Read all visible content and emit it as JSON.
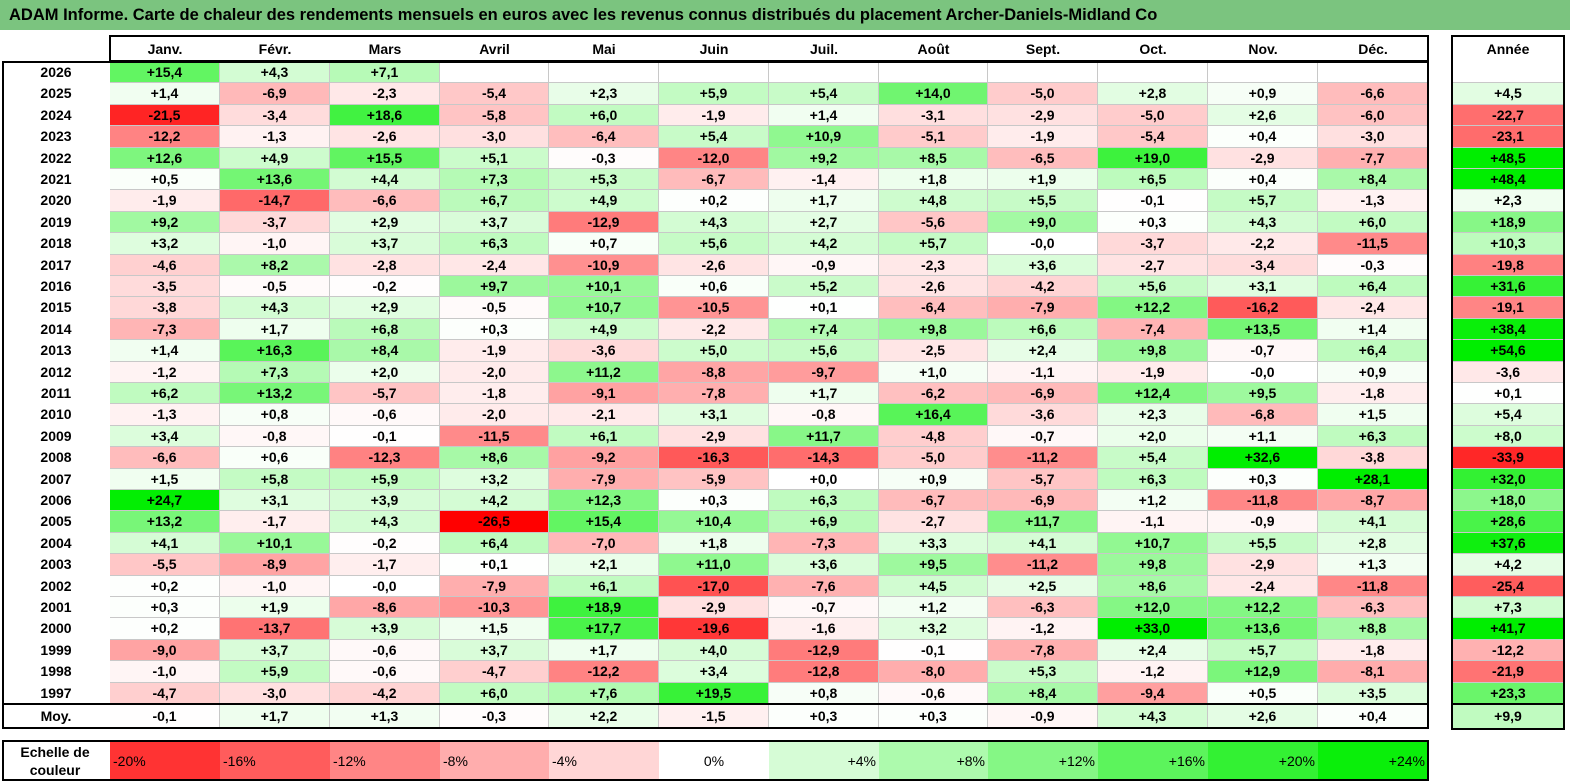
{
  "title": "ADAM Informe. Carte de chaleur des rendements mensuels en euros avec les revenus connus distribués du placement Archer-Daniels-Midland Co",
  "chart_data": {
    "type": "heatmap",
    "title": "ADAM Informe. Carte de chaleur des rendements mensuels en euros avec les revenus connus distribués du placement Archer-Daniels-Midland Co",
    "months": [
      "Janv.",
      "Févr.",
      "Mars",
      "Avril",
      "Mai",
      "Juin",
      "Juil.",
      "Août",
      "Sept.",
      "Oct.",
      "Nov.",
      "Déc."
    ],
    "year_header": "Année",
    "rows": [
      {
        "label": "2026",
        "values": [
          "+15,4",
          "+4,3",
          "+7,1",
          "",
          "",
          "",
          "",
          "",
          "",
          "",
          "",
          ""
        ],
        "year": ""
      },
      {
        "label": "2025",
        "values": [
          "+1,4",
          "-6,9",
          "-2,3",
          "-5,4",
          "+2,3",
          "+5,9",
          "+5,4",
          "+14,0",
          "-5,0",
          "+2,8",
          "+0,9",
          "-6,6"
        ],
        "year": "+4,5"
      },
      {
        "label": "2024",
        "values": [
          "-21,5",
          "-3,4",
          "+18,6",
          "-5,8",
          "+6,0",
          "-1,9",
          "+1,4",
          "-3,1",
          "-2,9",
          "-5,0",
          "+2,6",
          "-6,0"
        ],
        "year": "-22,7"
      },
      {
        "label": "2023",
        "values": [
          "-12,2",
          "-1,3",
          "-2,6",
          "-3,0",
          "-6,4",
          "+5,4",
          "+10,9",
          "-5,1",
          "-1,9",
          "-5,4",
          "+0,4",
          "-3,0"
        ],
        "year": "-23,1"
      },
      {
        "label": "2022",
        "values": [
          "+12,6",
          "+4,9",
          "+15,5",
          "+5,1",
          "-0,3",
          "-12,0",
          "+9,2",
          "+8,5",
          "-6,5",
          "+19,0",
          "-2,9",
          "-7,7"
        ],
        "year": "+48,5"
      },
      {
        "label": "2021",
        "values": [
          "+0,5",
          "+13,6",
          "+4,4",
          "+7,3",
          "+5,3",
          "-6,7",
          "-1,4",
          "+1,8",
          "+1,9",
          "+6,5",
          "+0,4",
          "+8,4"
        ],
        "year": "+48,4"
      },
      {
        "label": "2020",
        "values": [
          "-1,9",
          "-14,7",
          "-6,6",
          "+6,7",
          "+4,9",
          "+0,2",
          "+1,7",
          "+4,8",
          "+5,5",
          "-0,1",
          "+5,7",
          "-1,3"
        ],
        "year": "+2,3"
      },
      {
        "label": "2019",
        "values": [
          "+9,2",
          "-3,7",
          "+2,9",
          "+3,7",
          "-12,9",
          "+4,3",
          "+2,7",
          "-5,6",
          "+9,0",
          "+0,3",
          "+4,3",
          "+6,0"
        ],
        "year": "+18,9"
      },
      {
        "label": "2018",
        "values": [
          "+3,2",
          "-1,0",
          "+3,7",
          "+6,3",
          "+0,7",
          "+5,6",
          "+4,2",
          "+5,7",
          "-0,0",
          "-3,7",
          "-2,2",
          "-11,5"
        ],
        "year": "+10,3"
      },
      {
        "label": "2017",
        "values": [
          "-4,6",
          "+8,2",
          "-2,8",
          "-2,4",
          "-10,9",
          "-2,6",
          "-0,9",
          "-2,3",
          "+3,6",
          "-2,7",
          "-3,4",
          "-0,3"
        ],
        "year": "-19,8"
      },
      {
        "label": "2016",
        "values": [
          "-3,5",
          "-0,5",
          "-0,2",
          "+9,7",
          "+10,1",
          "+0,6",
          "+5,2",
          "-2,6",
          "-4,2",
          "+5,6",
          "+3,1",
          "+6,4"
        ],
        "year": "+31,6"
      },
      {
        "label": "2015",
        "values": [
          "-3,8",
          "+4,3",
          "+2,9",
          "-0,5",
          "+10,7",
          "-10,5",
          "+0,1",
          "-6,4",
          "-7,9",
          "+12,2",
          "-16,2",
          "-2,4"
        ],
        "year": "-19,1"
      },
      {
        "label": "2014",
        "values": [
          "-7,3",
          "+1,7",
          "+6,8",
          "+0,3",
          "+4,9",
          "-2,2",
          "+7,4",
          "+9,8",
          "+6,6",
          "-7,4",
          "+13,5",
          "+1,4"
        ],
        "year": "+38,4"
      },
      {
        "label": "2013",
        "values": [
          "+1,4",
          "+16,3",
          "+8,4",
          "-1,9",
          "-3,6",
          "+5,0",
          "+5,6",
          "-2,5",
          "+2,4",
          "+9,8",
          "-0,7",
          "+6,4"
        ],
        "year": "+54,6"
      },
      {
        "label": "2012",
        "values": [
          "-1,2",
          "+7,3",
          "+2,0",
          "-2,0",
          "+11,2",
          "-8,8",
          "-9,7",
          "+1,0",
          "-1,1",
          "-1,9",
          "-0,0",
          "+0,9"
        ],
        "year": "-3,6"
      },
      {
        "label": "2011",
        "values": [
          "+6,2",
          "+13,2",
          "-5,7",
          "-1,8",
          "-9,1",
          "-7,8",
          "+1,7",
          "-6,2",
          "-6,9",
          "+12,4",
          "+9,5",
          "-1,8"
        ],
        "year": "+0,1"
      },
      {
        "label": "2010",
        "values": [
          "-1,3",
          "+0,8",
          "-0,6",
          "-2,0",
          "-2,1",
          "+3,1",
          "-0,8",
          "+16,4",
          "-3,6",
          "+2,3",
          "-6,8",
          "+1,5"
        ],
        "year": "+5,4"
      },
      {
        "label": "2009",
        "values": [
          "+3,4",
          "-0,8",
          "-0,1",
          "-11,5",
          "+6,1",
          "-2,9",
          "+11,7",
          "-4,8",
          "-0,7",
          "+2,0",
          "+1,1",
          "+6,3"
        ],
        "year": "+8,0"
      },
      {
        "label": "2008",
        "values": [
          "-6,6",
          "+0,6",
          "-12,3",
          "+8,6",
          "-9,2",
          "-16,3",
          "-14,3",
          "-5,0",
          "-11,2",
          "+5,4",
          "+32,6",
          "-3,8"
        ],
        "year": "-33,9"
      },
      {
        "label": "2007",
        "values": [
          "+1,5",
          "+5,8",
          "+5,9",
          "+3,2",
          "-7,9",
          "-5,9",
          "+0,0",
          "+0,9",
          "-5,7",
          "+6,3",
          "+0,3",
          "+28,1"
        ],
        "year": "+32,0"
      },
      {
        "label": "2006",
        "values": [
          "+24,7",
          "+3,1",
          "+3,9",
          "+4,2",
          "+12,3",
          "+0,3",
          "+6,3",
          "-6,7",
          "-6,9",
          "+1,2",
          "-11,8",
          "-8,7"
        ],
        "year": "+18,0"
      },
      {
        "label": "2005",
        "values": [
          "+13,2",
          "-1,7",
          "+4,3",
          "-26,5",
          "+15,4",
          "+10,4",
          "+6,9",
          "-2,7",
          "+11,7",
          "-1,1",
          "-0,9",
          "+4,1"
        ],
        "year": "+28,6"
      },
      {
        "label": "2004",
        "values": [
          "+4,1",
          "+10,1",
          "-0,2",
          "+6,4",
          "-7,0",
          "+1,8",
          "-7,3",
          "+3,3",
          "+4,1",
          "+10,7",
          "+5,5",
          "+2,8"
        ],
        "year": "+37,6"
      },
      {
        "label": "2003",
        "values": [
          "-5,5",
          "-8,9",
          "-1,7",
          "+0,1",
          "+2,1",
          "+11,0",
          "+3,6",
          "+9,5",
          "-11,2",
          "+9,8",
          "-2,9",
          "+1,3"
        ],
        "year": "+4,2"
      },
      {
        "label": "2002",
        "values": [
          "+0,2",
          "-1,0",
          "-0,0",
          "-7,9",
          "+6,1",
          "-17,0",
          "-7,6",
          "+4,5",
          "+2,5",
          "+8,6",
          "-2,4",
          "-11,8"
        ],
        "year": "-25,4"
      },
      {
        "label": "2001",
        "values": [
          "+0,3",
          "+1,9",
          "-8,6",
          "-10,3",
          "+18,9",
          "-2,9",
          "-0,7",
          "+1,2",
          "-6,3",
          "+12,0",
          "+12,2",
          "-6,3"
        ],
        "year": "+7,3"
      },
      {
        "label": "2000",
        "values": [
          "+0,2",
          "-13,7",
          "+3,9",
          "+1,5",
          "+17,7",
          "-19,6",
          "-1,6",
          "+3,2",
          "-1,2",
          "+33,0",
          "+13,6",
          "+8,8"
        ],
        "year": "+41,7"
      },
      {
        "label": "1999",
        "values": [
          "-9,0",
          "+3,7",
          "-0,6",
          "+3,7",
          "+1,7",
          "+4,0",
          "-12,9",
          "-0,1",
          "-7,8",
          "+2,4",
          "+5,7",
          "-1,8"
        ],
        "year": "-12,2"
      },
      {
        "label": "1998",
        "values": [
          "-1,0",
          "+5,9",
          "-0,6",
          "-4,7",
          "-12,2",
          "+3,4",
          "-12,8",
          "-8,0",
          "+5,3",
          "-1,2",
          "+12,9",
          "-8,1"
        ],
        "year": "-21,9"
      },
      {
        "label": "1997",
        "values": [
          "-4,7",
          "-3,0",
          "-4,2",
          "+6,0",
          "+7,6",
          "+19,5",
          "+0,8",
          "-0,6",
          "+8,4",
          "-9,4",
          "+0,5",
          "+3,5"
        ],
        "year": "+23,3"
      }
    ],
    "average": {
      "label": "Moy.",
      "values": [
        "-0,1",
        "+1,7",
        "+1,3",
        "-0,3",
        "+2,2",
        "-1,5",
        "+0,3",
        "+0,3",
        "-0,9",
        "+4,3",
        "+2,6",
        "+0,4"
      ],
      "year": "+9,9"
    },
    "scale": {
      "label": "Echelle de couleur",
      "steps": [
        "-20%",
        "-16%",
        "-12%",
        "-8%",
        "-4%",
        "0%",
        "+4%",
        "+8%",
        "+12%",
        "+16%",
        "+20%",
        "+24%"
      ]
    },
    "colors": {
      "negative_max": "#ff0000",
      "neutral": "#ffffff",
      "positive_max": "#00ee00",
      "title_bar": "#7bc47f"
    }
  }
}
